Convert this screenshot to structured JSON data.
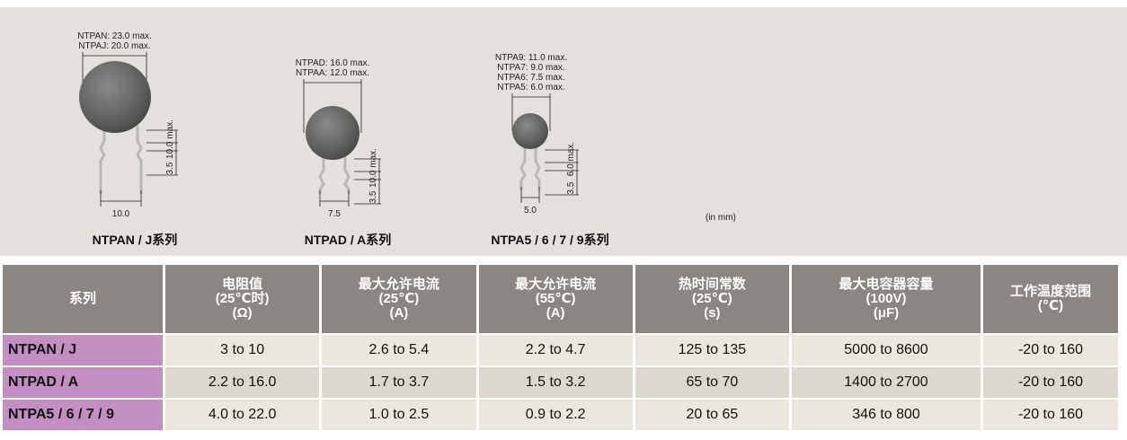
{
  "figures": [
    {
      "dims": [
        "NTPAN: 23.0 max.",
        "NTPAJ: 20.0 max."
      ],
      "height": "10.0 max.",
      "lead": "3.5",
      "width": "10.0",
      "caption": "NTPAN / J系列"
    },
    {
      "dims": [
        "NTPAD: 16.0 max.",
        "NTPAA: 12.0 max."
      ],
      "height": "10.0 max.",
      "lead": "3.5",
      "width": "7.5",
      "caption": "NTPAD / A系列"
    },
    {
      "dims": [
        "NTPA9: 11.0 max.",
        "NTPA7: 9.0 max.",
        "NTPA6: 7.5 max.",
        "NTPA5: 6.0 max."
      ],
      "height": "6.0 max.",
      "lead": "3.5",
      "width": "5.0",
      "caption": "NTPA5 / 6 / 7 / 9系列"
    }
  ],
  "unit_note": "(in mm)",
  "table": {
    "header": [
      [
        "系列"
      ],
      [
        "电阻值",
        "(25℃时)",
        "(Ω)"
      ],
      [
        "最大允许电流",
        "(25℃)",
        "(A)"
      ],
      [
        "最大允许电流",
        "(55℃)",
        "(A)"
      ],
      [
        "热时间常数",
        "(25℃)",
        "(s)"
      ],
      [
        "最大电容器容量",
        "(100V)",
        "(μF)"
      ],
      [
        "工作温度范围",
        "(℃)"
      ]
    ],
    "rows": [
      [
        "NTPAN / J",
        "3 to 10",
        "2.6 to 5.4",
        "2.2 to 4.7",
        "125 to 135",
        "5000 to 8600",
        "-20 to 160"
      ],
      [
        "NTPAD / A",
        "2.2 to 16.0",
        "1.7 to 3.7",
        "1.5 to 3.2",
        "65 to 70",
        "1400 to 2700",
        "-20 to 160"
      ],
      [
        "NTPA5 / 6 / 7 / 9",
        "4.0 to 22.0",
        "1.0 to 2.5",
        "0.9 to 2.2",
        "20 to 65",
        "346 to 800",
        "-20 to 160"
      ]
    ]
  }
}
